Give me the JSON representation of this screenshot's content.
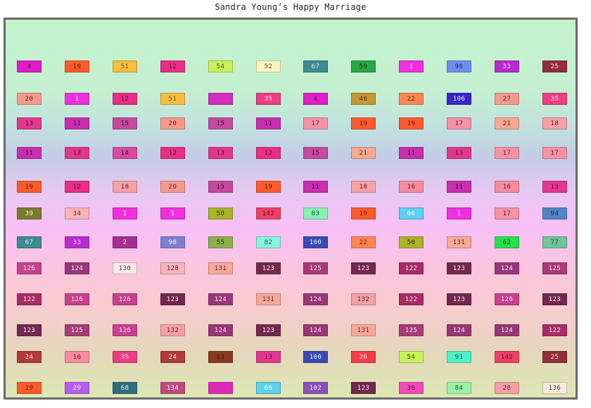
{
  "title": "Sandra Young’s Happy Marriage",
  "rows": [
    [
      [
        "4",
        "#e21bc8",
        "#4a2048"
      ],
      [
        "19",
        "#ff5a2b",
        "#5a1c10"
      ],
      [
        "51",
        "#f7bd3e",
        "#7a5a12"
      ],
      [
        "12",
        "#ea2d86",
        "#5a0f30"
      ],
      [
        "54",
        "#c9f25a",
        "#3c5410"
      ],
      [
        "52",
        "#fbf4c0",
        "#5e5a3a"
      ],
      [
        "67",
        "#3d8a91",
        "#dfeeee"
      ],
      [
        "59",
        "#27a744",
        "#0c3a16"
      ],
      [
        "1",
        "#f22fde",
        "#ffffff"
      ],
      [
        "96",
        "#6f8ff0",
        "#1a2a60"
      ],
      [
        "33",
        "#b92ad0",
        "#f4dff8"
      ],
      [
        "25",
        "#922d3b",
        "#f6dede"
      ]
    ],
    [
      [
        "20",
        "#f59a8b",
        "#5a2a22"
      ],
      [
        "1",
        "#f22fde",
        "#ffffff"
      ],
      [
        "12",
        "#ea2d86",
        "#5a0f30"
      ],
      [
        "51",
        "#f7bd3e",
        "#7a5a12"
      ],
      [
        "",
        "#d42cbd",
        "#ffffff"
      ],
      [
        "35",
        "#ee3c85",
        "#ffe8f2"
      ],
      [
        "4",
        "#e21bc8",
        "#4a2048"
      ],
      [
        "46",
        "#c69732",
        "#4a3410"
      ],
      [
        "22",
        "#ff8552",
        "#5a2410"
      ],
      [
        "106",
        "#3a26c8",
        "#ece8ff"
      ],
      [
        "27",
        "#f59a8b",
        "#5a2a22"
      ],
      [
        "35",
        "#ee3c85",
        "#ffe8f2"
      ]
    ],
    [
      [
        "13",
        "#e2378f",
        "#5a0f30"
      ],
      [
        "11",
        "#c82eae",
        "#3e0c38"
      ],
      [
        "15",
        "#c64a9e",
        "#3e0c38"
      ],
      [
        "20",
        "#f59a8b",
        "#5a2a22"
      ],
      [
        "15",
        "#c64a9e",
        "#3e0c38"
      ],
      [
        "11",
        "#c82eae",
        "#3e0c38"
      ],
      [
        "17",
        "#f592a6",
        "#5a2230"
      ],
      [
        "19",
        "#ff5a2b",
        "#5a1c10"
      ],
      [
        "19",
        "#ff5a2b",
        "#5a1c10"
      ],
      [
        "17",
        "#f592a6",
        "#5a2230"
      ],
      [
        "21",
        "#f7a890",
        "#5a2a22"
      ],
      [
        "18",
        "#f7a1a6",
        "#5a2230"
      ]
    ],
    [
      [
        "11",
        "#c82eae",
        "#3e0c38"
      ],
      [
        "13",
        "#e2378f",
        "#5a0f30"
      ],
      [
        "14",
        "#d84aa0",
        "#3e0c38"
      ],
      [
        "12",
        "#ea2d86",
        "#5a0f30"
      ],
      [
        "13",
        "#e2378f",
        "#5a0f30"
      ],
      [
        "12",
        "#ea2d86",
        "#5a0f30"
      ],
      [
        "15",
        "#c64a9e",
        "#3e0c38"
      ],
      [
        "21",
        "#f7a890",
        "#5a2a22"
      ],
      [
        "11",
        "#c82eae",
        "#3e0c38"
      ],
      [
        "13",
        "#e2378f",
        "#5a0f30"
      ],
      [
        "17",
        "#f592a6",
        "#5a2230"
      ],
      [
        "17",
        "#f592a6",
        "#5a2230"
      ]
    ],
    [
      [
        "19",
        "#ff5a2b",
        "#5a1c10"
      ],
      [
        "12",
        "#ea2d86",
        "#5a0f30"
      ],
      [
        "18",
        "#f7a1a6",
        "#5a2230"
      ],
      [
        "20",
        "#f59a8b",
        "#5a2a22"
      ],
      [
        "15",
        "#c64a9e",
        "#3e0c38"
      ],
      [
        "19",
        "#ff5a2b",
        "#5a1c10"
      ],
      [
        "11",
        "#c82eae",
        "#3e0c38"
      ],
      [
        "18",
        "#f7a1a6",
        "#5a2230"
      ],
      [
        "16",
        "#f78ca0",
        "#5a2230"
      ],
      [
        "11",
        "#c82eae",
        "#3e0c38"
      ],
      [
        "16",
        "#f78ca0",
        "#5a2230"
      ],
      [
        "13",
        "#e2378f",
        "#5a0f30"
      ]
    ],
    [
      [
        "39",
        "#7b7a2c",
        "#f4f4e0"
      ],
      [
        "34",
        "#f8b3b8",
        "#5a2230"
      ],
      [
        "1",
        "#f22fde",
        "#ffffff"
      ],
      [
        "1",
        "#f22fde",
        "#ffffff"
      ],
      [
        "50",
        "#a8b426",
        "#2e3408"
      ],
      [
        "142",
        "#ef3f65",
        "#5a0f20"
      ],
      [
        "83",
        "#86f2b0",
        "#1e5a34"
      ],
      [
        "19",
        "#ff5a2b",
        "#5a1c10"
      ],
      [
        "66",
        "#5ad2f0",
        "#ffffff"
      ],
      [
        "1",
        "#f22fde",
        "#ffffff"
      ],
      [
        "17",
        "#f592a6",
        "#5a2230"
      ],
      [
        "94",
        "#4f86c2",
        "#16304a"
      ]
    ],
    [
      [
        "67",
        "#3d8a91",
        "#dfeeee"
      ],
      [
        "33",
        "#b92ad0",
        "#f4dff8"
      ],
      [
        "2",
        "#a72e92",
        "#f8e8f4"
      ],
      [
        "98",
        "#7f7fd2",
        "#f0f0ff"
      ],
      [
        "55",
        "#8eae4a",
        "#26360e"
      ],
      [
        "82",
        "#86f5de",
        "#1e5a4e"
      ],
      [
        "100",
        "#3a4ab4",
        "#e8ecff"
      ],
      [
        "22",
        "#ff8552",
        "#5a2410"
      ],
      [
        "50",
        "#a8b426",
        "#2e3408"
      ],
      [
        "131",
        "#f8a898",
        "#5a2a22"
      ],
      [
        "62",
        "#27e04a",
        "#0c4a16"
      ],
      [
        "77",
        "#71c49a",
        "#1a4a32"
      ]
    ],
    [
      [
        "126",
        "#c8408e",
        "#ffeaf4"
      ],
      [
        "124",
        "#983678",
        "#ffeaf4"
      ],
      [
        "130",
        "#fbe8e8",
        "#5a3a3a"
      ],
      [
        "128",
        "#f6b4ba",
        "#5a2230"
      ],
      [
        "131",
        "#f8a898",
        "#5a2a22"
      ],
      [
        "123",
        "#72284f",
        "#ffeaf4"
      ],
      [
        "125",
        "#a83a78",
        "#ffeaf4"
      ],
      [
        "123",
        "#72284f",
        "#ffeaf4"
      ],
      [
        "122",
        "#a82c66",
        "#ffeaf4"
      ],
      [
        "123",
        "#72284f",
        "#ffeaf4"
      ],
      [
        "124",
        "#983678",
        "#ffeaf4"
      ],
      [
        "125",
        "#a83a78",
        "#ffeaf4"
      ]
    ],
    [
      [
        "122",
        "#a82c66",
        "#ffeaf4"
      ],
      [
        "126",
        "#c8408e",
        "#ffeaf4"
      ],
      [
        "126",
        "#c8408e",
        "#ffeaf4"
      ],
      [
        "123",
        "#72284f",
        "#ffeaf4"
      ],
      [
        "124",
        "#983678",
        "#ffeaf4"
      ],
      [
        "131",
        "#f8a898",
        "#5a2a22"
      ],
      [
        "124",
        "#983678",
        "#ffeaf4"
      ],
      [
        "132",
        "#f4a0a4",
        "#5a2230"
      ],
      [
        "122",
        "#a82c66",
        "#ffeaf4"
      ],
      [
        "123",
        "#72284f",
        "#ffeaf4"
      ],
      [
        "126",
        "#c8408e",
        "#ffeaf4"
      ],
      [
        "123",
        "#72284f",
        "#ffeaf4"
      ]
    ],
    [
      [
        "123",
        "#72284f",
        "#ffeaf4"
      ],
      [
        "125",
        "#a83a78",
        "#ffeaf4"
      ],
      [
        "126",
        "#c8408e",
        "#ffeaf4"
      ],
      [
        "132",
        "#f4a0a4",
        "#5a2230"
      ],
      [
        "124",
        "#983678",
        "#ffeaf4"
      ],
      [
        "123",
        "#72284f",
        "#ffeaf4"
      ],
      [
        "124",
        "#983678",
        "#ffeaf4"
      ],
      [
        "131",
        "#f8a898",
        "#5a2a22"
      ],
      [
        "125",
        "#a83a78",
        "#ffeaf4"
      ],
      [
        "124",
        "#983678",
        "#ffeaf4"
      ],
      [
        "124",
        "#983678",
        "#ffeaf4"
      ],
      [
        "122",
        "#a82c66",
        "#ffeaf4"
      ]
    ],
    [
      [
        "24",
        "#b23a3a",
        "#ffe8e8"
      ],
      [
        "16",
        "#f78ca0",
        "#5a2230"
      ],
      [
        "35",
        "#ee3c85",
        "#ffe8f2"
      ],
      [
        "24",
        "#b23a3a",
        "#ffe8e8"
      ],
      [
        "83",
        "#8a3a22",
        "#3a1208"
      ],
      [
        "13",
        "#e2378f",
        "#5a0f30"
      ],
      [
        "100",
        "#3a4ab4",
        "#e8ecff"
      ],
      [
        "26",
        "#f23c4a",
        "#ffe8e8"
      ],
      [
        "54",
        "#c9f25a",
        "#3c5410"
      ],
      [
        "91",
        "#4ef2c8",
        "#125a48"
      ],
      [
        "142",
        "#ef3f65",
        "#5a0f20"
      ],
      [
        "25",
        "#922d3b",
        "#f6dede"
      ]
    ],
    [
      [
        "19",
        "#ff5a2b",
        "#5a1c10"
      ],
      [
        "29",
        "#b65ef2",
        "#f4e8ff"
      ],
      [
        "68",
        "#2f6e80",
        "#e0eef2"
      ],
      [
        "134",
        "#c04a82",
        "#ffeaf4"
      ],
      [
        "",
        "#e02ab8",
        "#ffffff"
      ],
      [
        "66",
        "#5ad2f0",
        "#ffffff"
      ],
      [
        "102",
        "#8a50b8",
        "#f4e8ff"
      ],
      [
        "123",
        "#72284f",
        "#ffeaf4"
      ],
      [
        "36",
        "#f24ab8",
        "#5a0f40"
      ],
      [
        "84",
        "#98f2a6",
        "#1e5a2a"
      ],
      [
        "28",
        "#f4a0a4",
        "#5a2230"
      ],
      [
        "136",
        "#fbe8dc",
        "#5a3a2a"
      ]
    ]
  ]
}
